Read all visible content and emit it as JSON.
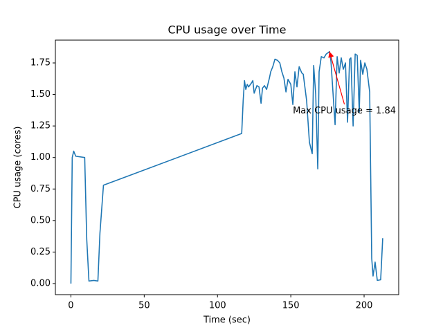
{
  "chart_data": {
    "type": "line",
    "title": "CPU usage over Time",
    "xlabel": "Time (sec)",
    "ylabel": "CPU usage (cores)",
    "color": "#1f77b4",
    "x": [
      0,
      0.9,
      1.9,
      3.3,
      9.4,
      10.8,
      12.3,
      15.6,
      18.4,
      19.8,
      22.2,
      116.5,
      117.5,
      118.4,
      119.3,
      120.3,
      121.2,
      123.1,
      124.1,
      125,
      126.9,
      128.3,
      129.7,
      130.7,
      132,
      133.5,
      135.4,
      136.3,
      137.7,
      139.2,
      141,
      142.5,
      143.9,
      145.3,
      146.7,
      148.1,
      150,
      151.4,
      152.8,
      154.2,
      155.7,
      157.5,
      158.5,
      160.8,
      162.7,
      164.6,
      165.6,
      167,
      168.4,
      169.3,
      170.8,
      172.6,
      174.1,
      176.4,
      177.4,
      180.2,
      181.6,
      183,
      184.4,
      185.8,
      187.3,
      188.7,
      190.1,
      191,
      192.5,
      193.9,
      195.3,
      196.7,
      197.6,
      199.1,
      200.5,
      201.9,
      203.8,
      205.2,
      206.1,
      207.5,
      209,
      211.3,
      212.7
    ],
    "values": [
      0,
      1.0,
      1.05,
      1.01,
      1.0,
      0.35,
      0.02,
      0.025,
      0.02,
      0.4,
      0.78,
      1.19,
      1.45,
      1.61,
      1.54,
      1.58,
      1.56,
      1.59,
      1.61,
      1.51,
      1.57,
      1.56,
      1.43,
      1.55,
      1.57,
      1.54,
      1.63,
      1.68,
      1.72,
      1.78,
      1.77,
      1.75,
      1.68,
      1.63,
      1.52,
      1.62,
      1.58,
      1.42,
      1.68,
      1.56,
      1.72,
      1.67,
      1.66,
      1.45,
      1.12,
      1.03,
      1.73,
      1.5,
      0.91,
      1.68,
      1.8,
      1.79,
      1.82,
      1.84,
      1.76,
      1.26,
      1.8,
      1.67,
      1.79,
      1.7,
      1.75,
      1.28,
      1.78,
      1.79,
      1.25,
      1.82,
      1.81,
      1.36,
      1.77,
      1.66,
      1.75,
      1.7,
      1.52,
      0.2,
      0.06,
      0.17,
      0.025,
      0.03,
      0.36
    ],
    "xlim": [
      -10.6,
      223.6
    ],
    "ylim": [
      -0.088,
      1.931
    ],
    "xticks": [
      0,
      50,
      100,
      150,
      200
    ],
    "yticks": [
      {
        "value": 0,
        "label": "0.00"
      },
      {
        "value": 0.25,
        "label": "0.25"
      },
      {
        "value": 0.5,
        "label": "0.50"
      },
      {
        "value": 0.75,
        "label": "0.75"
      },
      {
        "value": 1,
        "label": "1.00"
      },
      {
        "value": 1.25,
        "label": "1.25"
      },
      {
        "value": 1.5,
        "label": "1.50"
      },
      {
        "value": 1.75,
        "label": "1.75"
      }
    ],
    "grid": false,
    "annotation": {
      "text": "Max CPU usage = 1.84",
      "color": "#ff0000",
      "xy": [
        176.4,
        1.84
      ],
      "xytext": [
        151.4,
        1.37
      ]
    }
  }
}
